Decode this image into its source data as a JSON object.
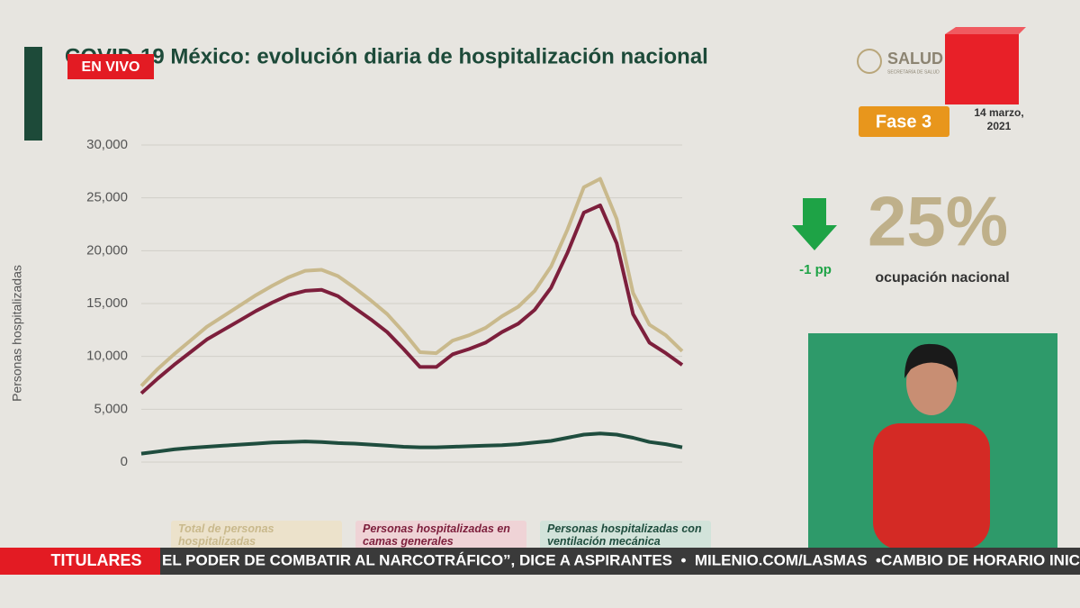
{
  "broadcast": {
    "live": "EN VIVO",
    "ticker_label": "TITULARES",
    "ticker_text": "EL PODER DE COMBATIR AL NARCOTRÁFICO”, DICE A ASPIRANTES  •  MILENIO.COM/LASMAS  •CAMBIO DE HORARIO INICIA E"
  },
  "header": {
    "logo": "SALUD",
    "logo_sub": "SECRETARÍA DE SALUD",
    "phase": "Fase 3",
    "date": "14 marzo, 2021"
  },
  "indicator": {
    "change": "-1 pp",
    "occupancy": "25%",
    "occupancy_label": "ocupación nacional"
  },
  "chart_data": {
    "type": "line",
    "title": "COVID-19 México: evolución diaria de hospitalización nacional",
    "y_label": "Personas hospitalizadas",
    "ylim": [
      0,
      30000
    ],
    "yticks": [
      0,
      {
        "value": 5000,
        "label": "5,000"
      },
      {
        "value": 10000,
        "label": "10,000"
      },
      {
        "value": 15000,
        "label": "15,000"
      },
      {
        "value": 20000,
        "label": "20,000"
      },
      {
        "value": 25000,
        "label": "25,000"
      },
      {
        "value": 30000,
        "label": "30,000"
      }
    ],
    "grid": true,
    "series": [
      {
        "name": "Total de personas hospitalizadas",
        "color": "#c9b98c",
        "values": [
          7200,
          8800,
          10200,
          11500,
          12800,
          13800,
          14800,
          15800,
          16700,
          17500,
          18100,
          18200,
          17600,
          16500,
          15300,
          14000,
          12300,
          10400,
          10300,
          11500,
          12000,
          12700,
          13800,
          14700,
          16200,
          18500,
          22000,
          26000,
          26800,
          23000,
          16000,
          13000,
          12000,
          10500
        ]
      },
      {
        "name": "Personas hospitalizadas en camas generales",
        "color": "#7d1f3c",
        "values": [
          6500,
          7900,
          9200,
          10400,
          11600,
          12500,
          13400,
          14300,
          15100,
          15800,
          16200,
          16300,
          15700,
          14600,
          13500,
          12300,
          10700,
          9000,
          9000,
          10200,
          10700,
          11300,
          12300,
          13100,
          14400,
          16500,
          19800,
          23600,
          24300,
          20700,
          14000,
          11300,
          10300,
          9200
        ]
      },
      {
        "name": "Personas hospitalizadas con ventilación mecánica",
        "color": "#1f4d3e",
        "values": [
          800,
          1000,
          1200,
          1350,
          1450,
          1550,
          1650,
          1750,
          1850,
          1900,
          1950,
          1900,
          1800,
          1750,
          1650,
          1550,
          1450,
          1400,
          1400,
          1450,
          1500,
          1550,
          1600,
          1700,
          1850,
          2000,
          2300,
          2600,
          2700,
          2600,
          2300,
          1900,
          1700,
          1400
        ]
      }
    ]
  }
}
